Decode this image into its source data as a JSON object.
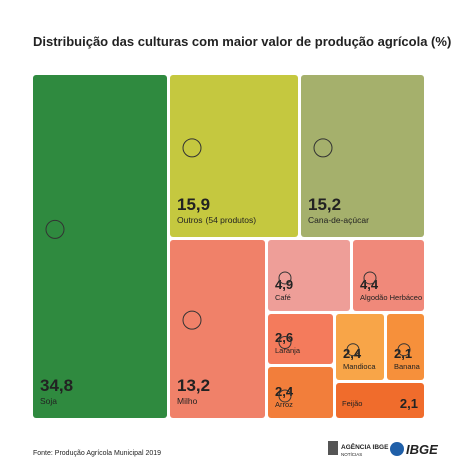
{
  "chart_data": {
    "type": "treemap",
    "title": "Distribuição das culturas com maior valor de produção agrícola (%)",
    "items": [
      {
        "name": "Soja",
        "value": 34.8,
        "value_label": "34,8",
        "color": "#2f8a3f"
      },
      {
        "name": "Outros",
        "note": "(54 produtos)",
        "value": 15.9,
        "value_label": "15,9",
        "color": "#c5c83f"
      },
      {
        "name": "Cana-de-açúcar",
        "value": 15.2,
        "value_label": "15,2",
        "color": "#a5b06c"
      },
      {
        "name": "Milho",
        "value": 13.2,
        "value_label": "13,2",
        "color": "#f08169"
      },
      {
        "name": "Café",
        "value": 4.9,
        "value_label": "4,9",
        "color": "#ee9e98"
      },
      {
        "name": "Algodão Herbáceo",
        "value": 4.4,
        "value_label": "4,4",
        "color": "#f0897a"
      },
      {
        "name": "Laranja",
        "value": 2.6,
        "value_label": "2,6",
        "color": "#f47b5c"
      },
      {
        "name": "Mandioca",
        "value": 2.4,
        "value_label": "2,4",
        "color": "#f8a548"
      },
      {
        "name": "Banana",
        "value": 2.1,
        "value_label": "2,1",
        "color": "#f6903b"
      },
      {
        "name": "Arroz",
        "value": 2.4,
        "value_label": "2,4",
        "color": "#f27e3b"
      },
      {
        "name": "Feijão",
        "value": 2.1,
        "value_label": "2,1",
        "color": "#f06c2c"
      }
    ]
  },
  "footer": {
    "source": "Fonte: Produção Agrícola Municipal 2019",
    "agency": "AGÊNCIA IBGE",
    "agency_sub": "NOTÍCIAS",
    "logo": "IBGE"
  }
}
